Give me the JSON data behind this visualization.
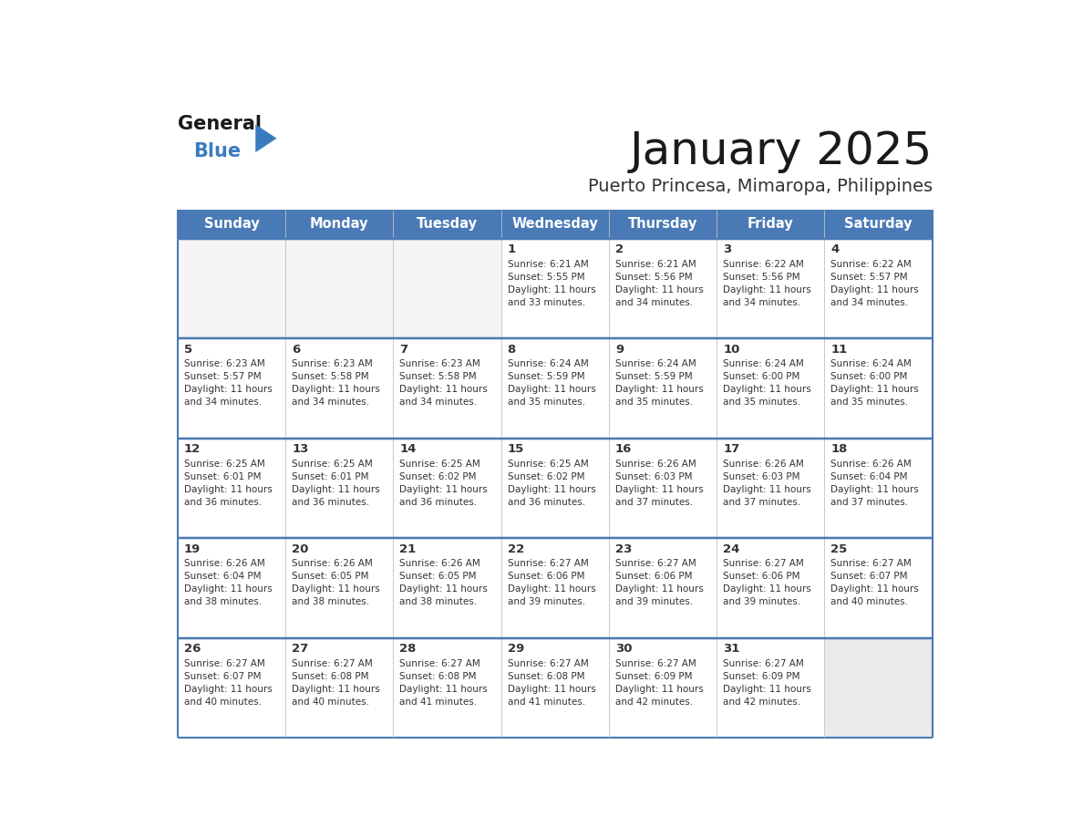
{
  "title": "January 2025",
  "subtitle": "Puerto Princesa, Mimaropa, Philippines",
  "days_of_week": [
    "Sunday",
    "Monday",
    "Tuesday",
    "Wednesday",
    "Thursday",
    "Friday",
    "Saturday"
  ],
  "header_bg": "#4a7ab5",
  "header_text": "#ffffff",
  "cell_bg": "#ffffff",
  "cell_bg_empty_last": "#ebebeb",
  "row_sep_color": "#4a7ab5",
  "col_sep_color": "#c0c0c0",
  "outer_border_color": "#4a7ab5",
  "title_color": "#1a1a1a",
  "subtitle_color": "#333333",
  "text_color": "#333333",
  "day_num_color": "#333333",
  "logo_black": "#1a1a1a",
  "logo_blue": "#3a7bbf",
  "logo_tri": "#3a7bbf",
  "weeks": [
    [
      {
        "day": null,
        "info": null
      },
      {
        "day": null,
        "info": null
      },
      {
        "day": null,
        "info": null
      },
      {
        "day": 1,
        "info": "Sunrise: 6:21 AM\nSunset: 5:55 PM\nDaylight: 11 hours\nand 33 minutes."
      },
      {
        "day": 2,
        "info": "Sunrise: 6:21 AM\nSunset: 5:56 PM\nDaylight: 11 hours\nand 34 minutes."
      },
      {
        "day": 3,
        "info": "Sunrise: 6:22 AM\nSunset: 5:56 PM\nDaylight: 11 hours\nand 34 minutes."
      },
      {
        "day": 4,
        "info": "Sunrise: 6:22 AM\nSunset: 5:57 PM\nDaylight: 11 hours\nand 34 minutes."
      }
    ],
    [
      {
        "day": 5,
        "info": "Sunrise: 6:23 AM\nSunset: 5:57 PM\nDaylight: 11 hours\nand 34 minutes."
      },
      {
        "day": 6,
        "info": "Sunrise: 6:23 AM\nSunset: 5:58 PM\nDaylight: 11 hours\nand 34 minutes."
      },
      {
        "day": 7,
        "info": "Sunrise: 6:23 AM\nSunset: 5:58 PM\nDaylight: 11 hours\nand 34 minutes."
      },
      {
        "day": 8,
        "info": "Sunrise: 6:24 AM\nSunset: 5:59 PM\nDaylight: 11 hours\nand 35 minutes."
      },
      {
        "day": 9,
        "info": "Sunrise: 6:24 AM\nSunset: 5:59 PM\nDaylight: 11 hours\nand 35 minutes."
      },
      {
        "day": 10,
        "info": "Sunrise: 6:24 AM\nSunset: 6:00 PM\nDaylight: 11 hours\nand 35 minutes."
      },
      {
        "day": 11,
        "info": "Sunrise: 6:24 AM\nSunset: 6:00 PM\nDaylight: 11 hours\nand 35 minutes."
      }
    ],
    [
      {
        "day": 12,
        "info": "Sunrise: 6:25 AM\nSunset: 6:01 PM\nDaylight: 11 hours\nand 36 minutes."
      },
      {
        "day": 13,
        "info": "Sunrise: 6:25 AM\nSunset: 6:01 PM\nDaylight: 11 hours\nand 36 minutes."
      },
      {
        "day": 14,
        "info": "Sunrise: 6:25 AM\nSunset: 6:02 PM\nDaylight: 11 hours\nand 36 minutes."
      },
      {
        "day": 15,
        "info": "Sunrise: 6:25 AM\nSunset: 6:02 PM\nDaylight: 11 hours\nand 36 minutes."
      },
      {
        "day": 16,
        "info": "Sunrise: 6:26 AM\nSunset: 6:03 PM\nDaylight: 11 hours\nand 37 minutes."
      },
      {
        "day": 17,
        "info": "Sunrise: 6:26 AM\nSunset: 6:03 PM\nDaylight: 11 hours\nand 37 minutes."
      },
      {
        "day": 18,
        "info": "Sunrise: 6:26 AM\nSunset: 6:04 PM\nDaylight: 11 hours\nand 37 minutes."
      }
    ],
    [
      {
        "day": 19,
        "info": "Sunrise: 6:26 AM\nSunset: 6:04 PM\nDaylight: 11 hours\nand 38 minutes."
      },
      {
        "day": 20,
        "info": "Sunrise: 6:26 AM\nSunset: 6:05 PM\nDaylight: 11 hours\nand 38 minutes."
      },
      {
        "day": 21,
        "info": "Sunrise: 6:26 AM\nSunset: 6:05 PM\nDaylight: 11 hours\nand 38 minutes."
      },
      {
        "day": 22,
        "info": "Sunrise: 6:27 AM\nSunset: 6:06 PM\nDaylight: 11 hours\nand 39 minutes."
      },
      {
        "day": 23,
        "info": "Sunrise: 6:27 AM\nSunset: 6:06 PM\nDaylight: 11 hours\nand 39 minutes."
      },
      {
        "day": 24,
        "info": "Sunrise: 6:27 AM\nSunset: 6:06 PM\nDaylight: 11 hours\nand 39 minutes."
      },
      {
        "day": 25,
        "info": "Sunrise: 6:27 AM\nSunset: 6:07 PM\nDaylight: 11 hours\nand 40 minutes."
      }
    ],
    [
      {
        "day": 26,
        "info": "Sunrise: 6:27 AM\nSunset: 6:07 PM\nDaylight: 11 hours\nand 40 minutes."
      },
      {
        "day": 27,
        "info": "Sunrise: 6:27 AM\nSunset: 6:08 PM\nDaylight: 11 hours\nand 40 minutes."
      },
      {
        "day": 28,
        "info": "Sunrise: 6:27 AM\nSunset: 6:08 PM\nDaylight: 11 hours\nand 41 minutes."
      },
      {
        "day": 29,
        "info": "Sunrise: 6:27 AM\nSunset: 6:08 PM\nDaylight: 11 hours\nand 41 minutes."
      },
      {
        "day": 30,
        "info": "Sunrise: 6:27 AM\nSunset: 6:09 PM\nDaylight: 11 hours\nand 42 minutes."
      },
      {
        "day": 31,
        "info": "Sunrise: 6:27 AM\nSunset: 6:09 PM\nDaylight: 11 hours\nand 42 minutes."
      },
      {
        "day": null,
        "info": null
      }
    ]
  ],
  "fig_width": 11.88,
  "fig_height": 9.18,
  "dpi": 100
}
